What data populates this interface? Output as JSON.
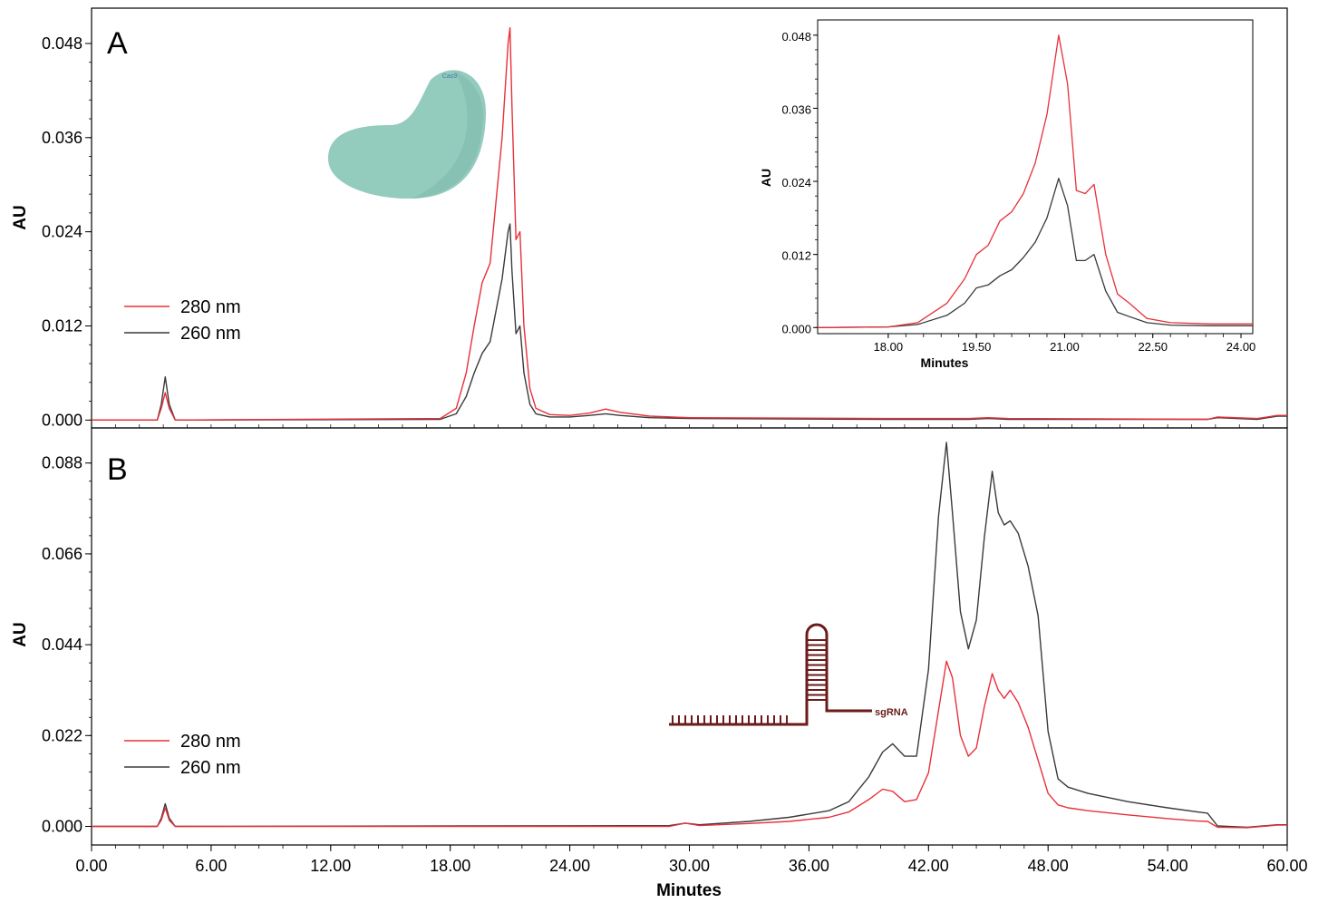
{
  "chart_data": [
    {
      "panel": "A",
      "type": "line",
      "panel_label": "A",
      "xlabel": "",
      "ylabel": "AU",
      "xlim": [
        0,
        60
      ],
      "ylim": [
        -0.001,
        0.0525
      ],
      "yticks": [
        0.0,
        0.012,
        0.024,
        0.036,
        0.048
      ],
      "ytick_labels": [
        "0.000",
        "0.012",
        "0.024",
        "0.036",
        "0.048"
      ],
      "legend": {
        "position": "middle-left"
      },
      "series": [
        {
          "name": "280 nm",
          "color": "#e8303a",
          "x": [
            0,
            3.3,
            3.5,
            3.7,
            3.9,
            4.2,
            17.5,
            18.3,
            18.8,
            19.2,
            19.6,
            20.0,
            20.3,
            20.6,
            20.9,
            21.0,
            21.1,
            21.3,
            21.5,
            21.7,
            22.0,
            22.3,
            23.0,
            24.0,
            25.0,
            25.8,
            26.5,
            28.0,
            30.0,
            40.0,
            44.0,
            45.0,
            46.0,
            56.0,
            56.5,
            58.5,
            59.5,
            60.0
          ],
          "y": [
            0.0,
            0.0,
            0.0015,
            0.0035,
            0.0015,
            0.0,
            0.0002,
            0.0015,
            0.006,
            0.012,
            0.0175,
            0.02,
            0.028,
            0.036,
            0.048,
            0.05,
            0.04,
            0.023,
            0.024,
            0.012,
            0.004,
            0.0015,
            0.0007,
            0.0006,
            0.0009,
            0.0014,
            0.001,
            0.0005,
            0.0003,
            0.0002,
            0.0002,
            0.0003,
            0.0002,
            0.0001,
            0.0004,
            0.0002,
            0.0006,
            0.0006
          ]
        },
        {
          "name": "260 nm",
          "color": "#3a3a3a",
          "x": [
            0,
            3.3,
            3.5,
            3.7,
            3.9,
            4.2,
            17.5,
            18.3,
            18.8,
            19.2,
            19.6,
            20.0,
            20.3,
            20.6,
            20.9,
            21.0,
            21.1,
            21.3,
            21.5,
            21.7,
            22.0,
            22.3,
            23.0,
            24.0,
            25.0,
            25.8,
            26.5,
            28.0,
            30.0,
            40.0,
            44.0,
            45.0,
            46.0,
            56.0,
            56.5,
            58.5,
            59.5,
            60.0
          ],
          "y": [
            0.0,
            0.0,
            0.002,
            0.0055,
            0.002,
            0.0,
            0.0001,
            0.0008,
            0.003,
            0.006,
            0.0085,
            0.01,
            0.014,
            0.018,
            0.024,
            0.025,
            0.019,
            0.011,
            0.012,
            0.006,
            0.002,
            0.0008,
            0.0004,
            0.0004,
            0.0006,
            0.0008,
            0.0006,
            0.0003,
            0.0002,
            0.0001,
            0.0001,
            0.0002,
            0.0001,
            0.0001,
            0.0003,
            0.0001,
            0.0005,
            0.0005
          ]
        }
      ],
      "annotations": {
        "protein_label": "Cas9"
      },
      "inset": {
        "type": "line",
        "xlabel": "Minutes",
        "ylabel": "AU",
        "xlim": [
          16.8,
          24.2
        ],
        "ylim": [
          -0.001,
          0.0505
        ],
        "xticks": [
          18.0,
          19.5,
          21.0,
          22.5,
          24.0
        ],
        "xtick_labels": [
          "18.00",
          "19.50",
          "21.00",
          "22.50",
          "24.00"
        ],
        "yticks": [
          0.0,
          0.012,
          0.024,
          0.036,
          0.048
        ],
        "ytick_labels": [
          "0.000",
          "0.012",
          "0.024",
          "0.036",
          "0.048"
        ],
        "series": [
          {
            "name": "280 nm",
            "color": "#e8303a",
            "x": [
              16.8,
              18.0,
              18.5,
              19.0,
              19.3,
              19.5,
              19.7,
              19.9,
              20.1,
              20.3,
              20.5,
              20.7,
              20.9,
              21.05,
              21.2,
              21.35,
              21.5,
              21.7,
              21.9,
              22.1,
              22.4,
              22.8,
              23.5,
              24.2
            ],
            "y": [
              0.0,
              0.0001,
              0.0008,
              0.004,
              0.008,
              0.012,
              0.0135,
              0.0175,
              0.019,
              0.022,
              0.027,
              0.035,
              0.048,
              0.04,
              0.0225,
              0.022,
              0.0235,
              0.012,
              0.0055,
              0.004,
              0.0015,
              0.0008,
              0.0006,
              0.0006
            ]
          },
          {
            "name": "260 nm",
            "color": "#3a3a3a",
            "x": [
              16.8,
              18.0,
              18.5,
              19.0,
              19.3,
              19.5,
              19.7,
              19.9,
              20.1,
              20.3,
              20.5,
              20.7,
              20.9,
              21.05,
              21.2,
              21.35,
              21.5,
              21.7,
              21.9,
              22.1,
              22.4,
              22.8,
              23.5,
              24.2
            ],
            "y": [
              0.0,
              0.0001,
              0.0005,
              0.002,
              0.004,
              0.0065,
              0.007,
              0.0085,
              0.0095,
              0.0115,
              0.014,
              0.018,
              0.0245,
              0.02,
              0.011,
              0.011,
              0.012,
              0.006,
              0.0025,
              0.0018,
              0.0008,
              0.0004,
              0.0003,
              0.0003
            ]
          }
        ]
      }
    },
    {
      "panel": "B",
      "type": "line",
      "panel_label": "B",
      "xlabel": "Minutes",
      "ylabel": "AU",
      "xlim": [
        0,
        60
      ],
      "ylim": [
        -0.0045,
        0.0965
      ],
      "xticks": [
        0,
        6,
        12,
        18,
        24,
        30,
        36,
        42,
        48,
        54,
        60
      ],
      "xtick_labels": [
        "0.00",
        "6.00",
        "12.00",
        "18.00",
        "24.00",
        "30.00",
        "36.00",
        "42.00",
        "48.00",
        "54.00",
        "60.00"
      ],
      "yticks": [
        0.0,
        0.022,
        0.044,
        0.066,
        0.088
      ],
      "ytick_labels": [
        "0.000",
        "0.022",
        "0.044",
        "0.066",
        "0.088"
      ],
      "legend": {
        "position": "bottom-left"
      },
      "series": [
        {
          "name": "280 nm",
          "color": "#e8303a",
          "x": [
            0,
            3.3,
            3.5,
            3.7,
            3.9,
            4.2,
            29.0,
            29.8,
            30.5,
            33.0,
            35.0,
            37.0,
            38.0,
            39.0,
            39.7,
            40.2,
            40.8,
            41.4,
            42.0,
            42.5,
            42.9,
            43.2,
            43.6,
            44.0,
            44.4,
            44.8,
            45.2,
            45.5,
            45.8,
            46.1,
            46.5,
            47.0,
            47.5,
            48.0,
            48.5,
            49.0,
            50.0,
            52.0,
            54.0,
            55.5,
            56.0,
            56.5,
            58.0,
            59.5,
            60.0
          ],
          "y": [
            0.0,
            0.0,
            0.0015,
            0.0045,
            0.0015,
            0.0,
            0.0,
            0.0008,
            0.0002,
            0.0007,
            0.0012,
            0.0022,
            0.0035,
            0.0065,
            0.009,
            0.0085,
            0.006,
            0.0065,
            0.013,
            0.028,
            0.04,
            0.036,
            0.022,
            0.017,
            0.019,
            0.029,
            0.037,
            0.033,
            0.031,
            0.033,
            0.03,
            0.024,
            0.016,
            0.008,
            0.0052,
            0.0045,
            0.0038,
            0.0028,
            0.0019,
            0.0013,
            0.0012,
            -0.0002,
            -0.0003,
            0.0003,
            0.0003
          ]
        },
        {
          "name": "260 nm",
          "color": "#3a3a3a",
          "x": [
            0,
            3.3,
            3.5,
            3.7,
            3.9,
            4.2,
            29.0,
            29.8,
            30.5,
            33.0,
            35.0,
            37.0,
            38.0,
            39.0,
            39.7,
            40.2,
            40.8,
            41.4,
            42.0,
            42.5,
            42.9,
            43.2,
            43.6,
            44.0,
            44.4,
            44.8,
            45.2,
            45.5,
            45.8,
            46.1,
            46.5,
            47.0,
            47.5,
            48.0,
            48.5,
            49.0,
            50.0,
            52.0,
            54.0,
            55.5,
            56.0,
            56.5,
            58.0,
            59.5,
            60.0
          ],
          "y": [
            0.0,
            0.0,
            0.002,
            0.0055,
            0.002,
            0.0,
            0.0002,
            0.0008,
            0.0004,
            0.0012,
            0.0022,
            0.0038,
            0.006,
            0.012,
            0.018,
            0.02,
            0.017,
            0.017,
            0.038,
            0.075,
            0.093,
            0.076,
            0.052,
            0.043,
            0.05,
            0.07,
            0.086,
            0.076,
            0.073,
            0.074,
            0.071,
            0.063,
            0.051,
            0.023,
            0.0115,
            0.0095,
            0.008,
            0.006,
            0.0045,
            0.0035,
            0.0032,
            0.0001,
            -0.0002,
            0.0004,
            0.0004
          ]
        }
      ],
      "annotations": {
        "rna_label": "sgRNA"
      }
    }
  ]
}
